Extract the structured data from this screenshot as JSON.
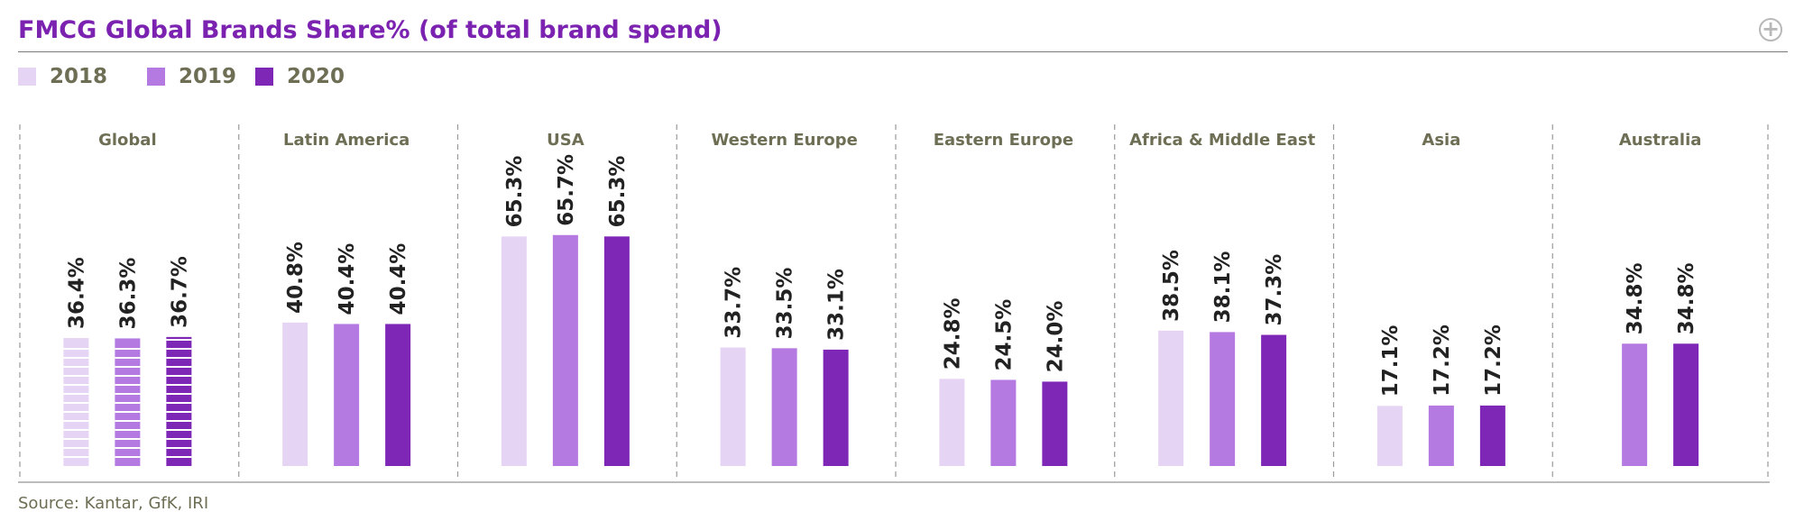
{
  "header": {
    "title": "FMCG Global Brands Share% (of total brand spend)",
    "expand_icon": "plus-circle-icon"
  },
  "footer": {
    "source": "Source: Kantar, GfK, IRI"
  },
  "colors": {
    "2018": "#e6d4f4",
    "2019": "#b57ae2",
    "2020": "#7e27b7",
    "title": "#7b22b0",
    "text": "#6e6e55"
  },
  "chart_data": {
    "type": "bar",
    "title": "FMCG Global Brands Share% (of total brand spend)",
    "xlabel": "",
    "ylabel": "",
    "ylim": [
      0,
      70
    ],
    "grid": false,
    "legend_position": "top-left",
    "categories": [
      "Global",
      "Latin America",
      "USA",
      "Western Europe",
      "Eastern Europe",
      "Africa & Middle East",
      "Asia",
      "Australia"
    ],
    "series": [
      {
        "name": "2018",
        "values": [
          36.4,
          40.8,
          65.3,
          33.7,
          24.8,
          38.5,
          17.1,
          null
        ],
        "labels": [
          "36.4%",
          "40.8%",
          "65.3%",
          "33.7%",
          "24.8%",
          "38.5%",
          "17.1%",
          ""
        ]
      },
      {
        "name": "2019",
        "values": [
          36.3,
          40.4,
          65.7,
          33.5,
          24.5,
          38.1,
          17.2,
          34.8
        ],
        "labels": [
          "36.3%",
          "40.4%",
          "65.7%",
          "33.5%",
          "24.5%",
          "38.1%",
          "17.2%",
          "34.8%"
        ]
      },
      {
        "name": "2020",
        "values": [
          36.7,
          40.4,
          65.3,
          33.1,
          24.0,
          37.3,
          17.2,
          34.8
        ],
        "labels": [
          "36.7%",
          "40.4%",
          "65.3%",
          "33.1%",
          "24.0%",
          "37.3%",
          "17.2%",
          "34.8%"
        ]
      }
    ]
  }
}
